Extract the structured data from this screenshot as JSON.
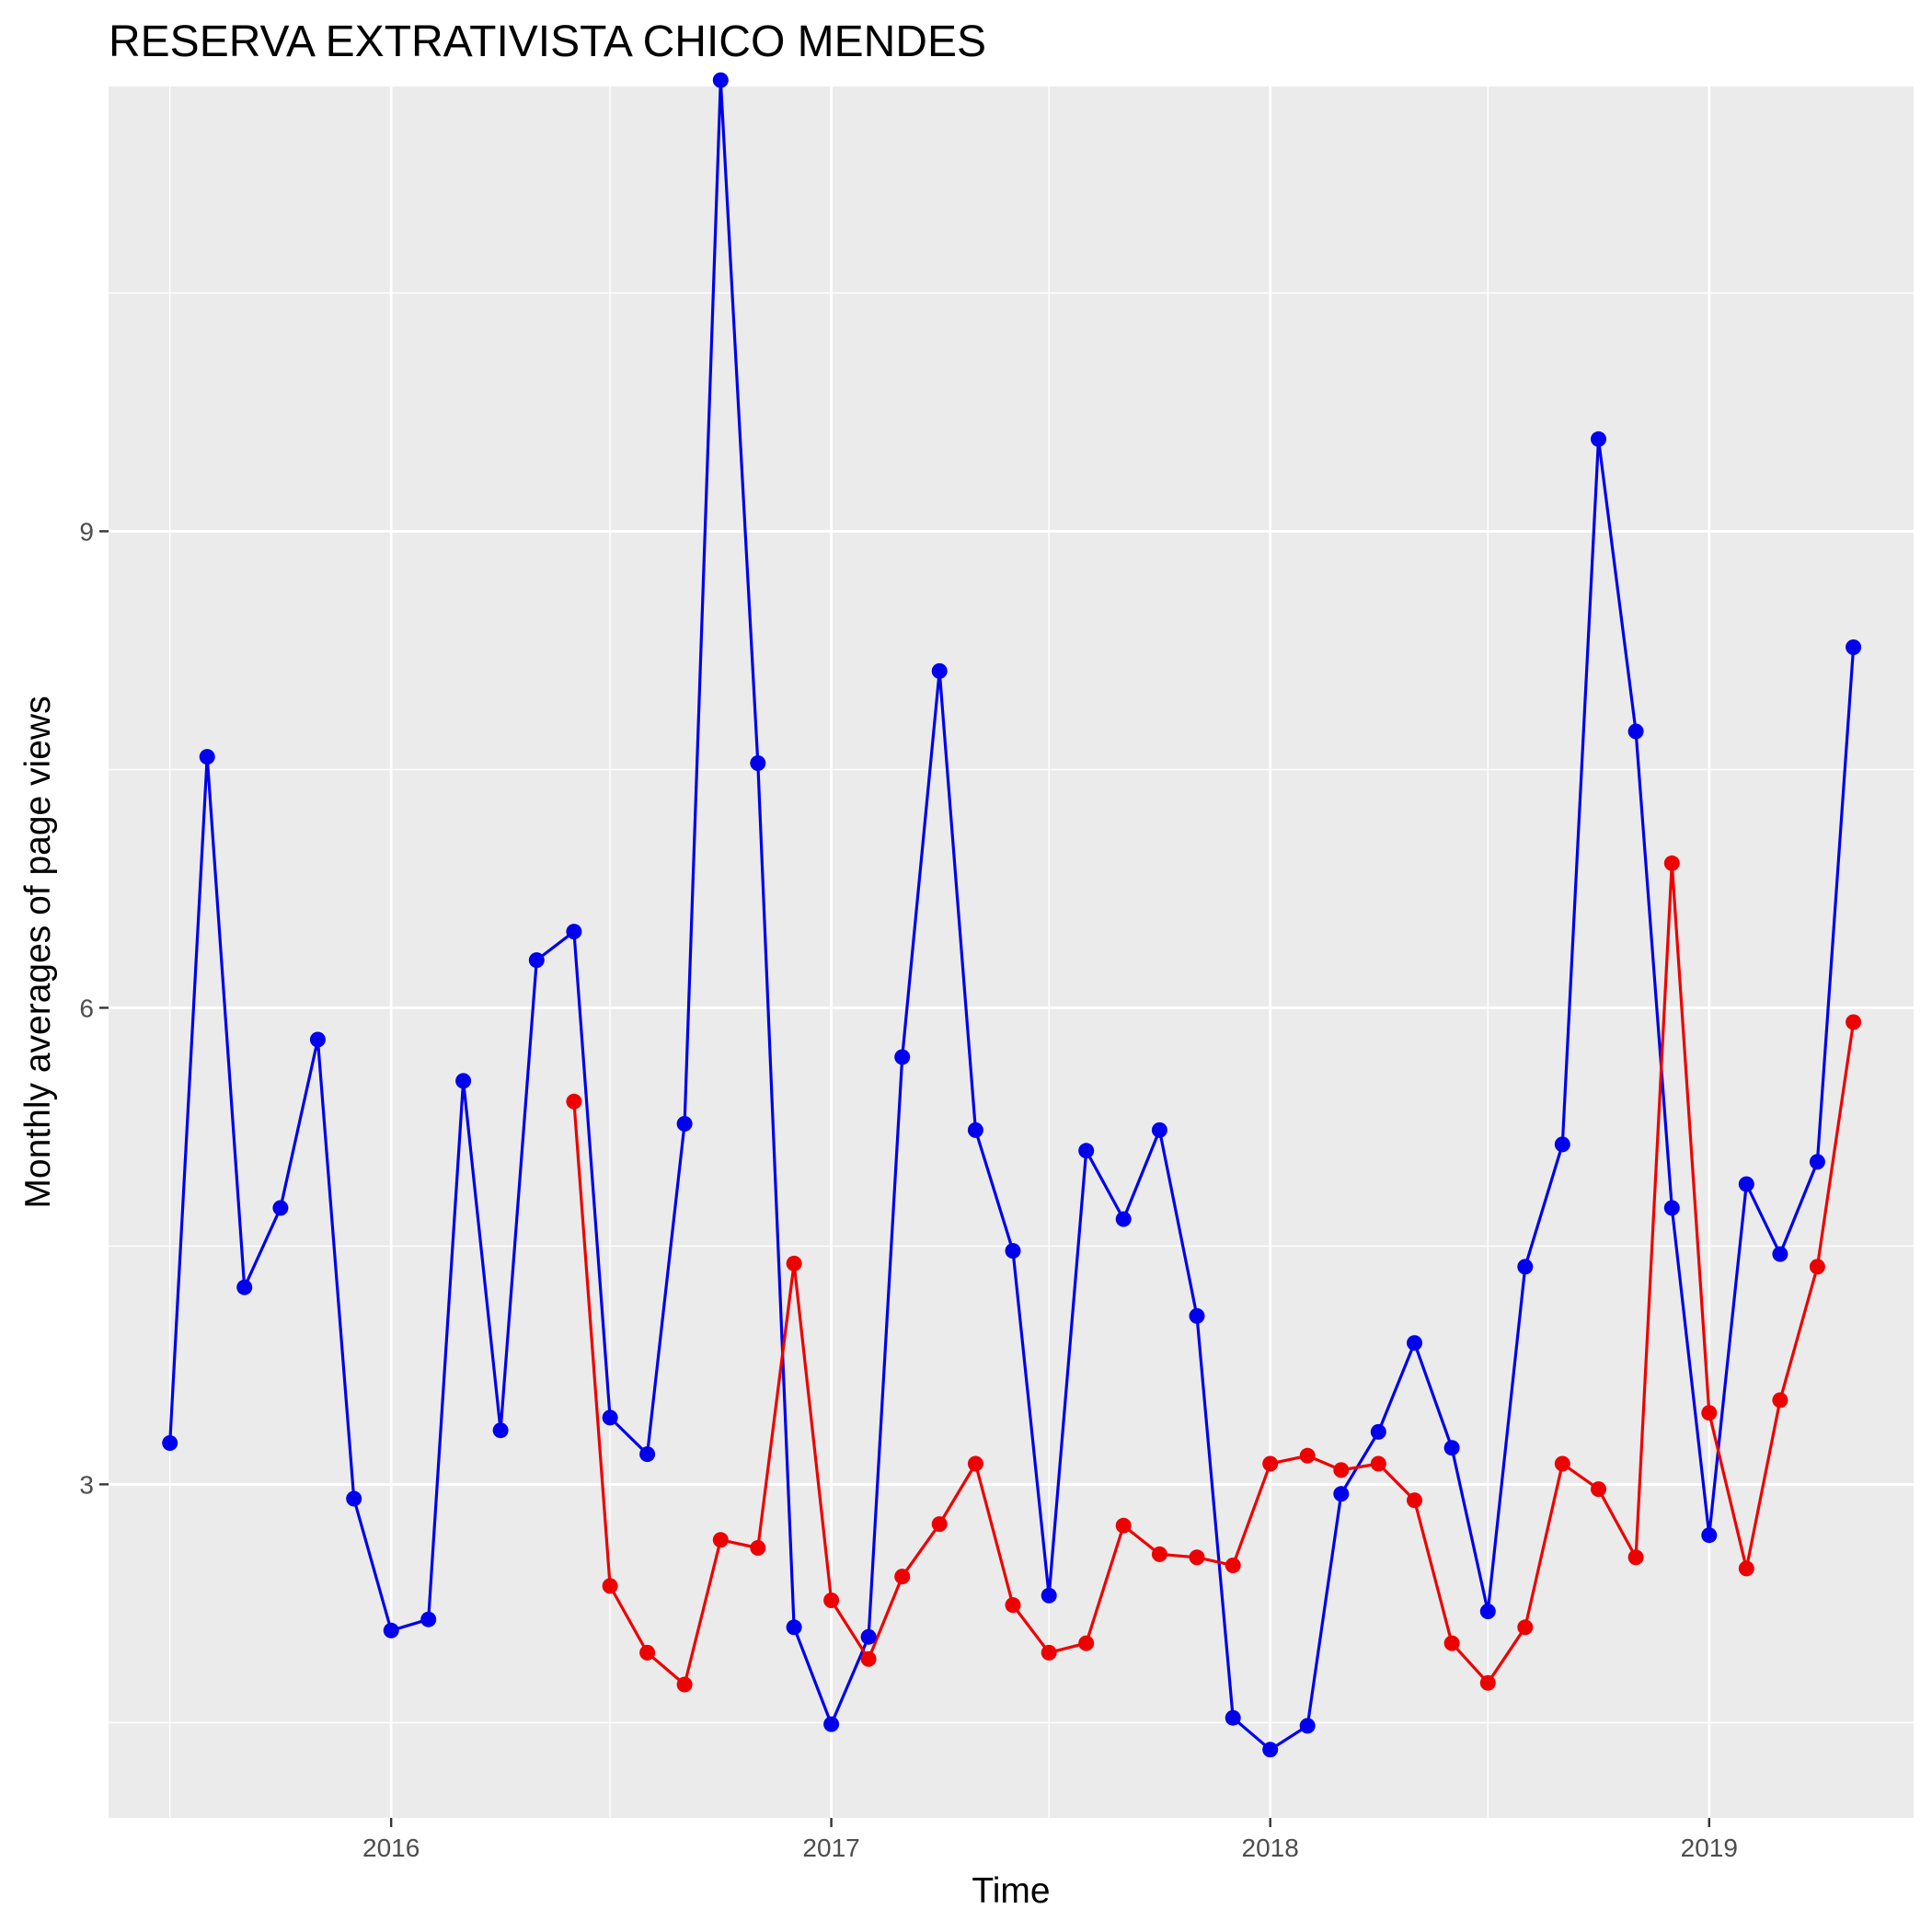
{
  "chart_data": {
    "type": "line",
    "title": "RESERVA EXTRATIVISTA CHICO MENDES",
    "xlabel": "Time",
    "ylabel": "Monthly averages of page views",
    "x_ticks": [
      "2016",
      "2017",
      "2018",
      "2019"
    ],
    "y_ticks": [
      "3",
      "6",
      "9"
    ],
    "xlim": [
      "2015-05-11",
      "2019-06-20"
    ],
    "ylim": [
      0.9,
      11.8
    ],
    "grid": true,
    "background": "#ebebeb",
    "series": [
      {
        "color": "#0000ee",
        "x": [
          "2015-07-01",
          "2015-08-01",
          "2015-09-01",
          "2015-10-01",
          "2015-11-01",
          "2015-12-01",
          "2016-01-01",
          "2016-02-01",
          "2016-03-01",
          "2016-04-01",
          "2016-05-01",
          "2016-06-01",
          "2016-07-01",
          "2016-08-01",
          "2016-09-01",
          "2016-10-01",
          "2016-11-01",
          "2016-12-01",
          "2017-01-01",
          "2017-02-01",
          "2017-03-01",
          "2017-04-01",
          "2017-05-01",
          "2017-06-01",
          "2017-07-01",
          "2017-08-01",
          "2017-09-01",
          "2017-10-01",
          "2017-11-01",
          "2017-12-01",
          "2018-01-01",
          "2018-02-01",
          "2018-03-01",
          "2018-04-01",
          "2018-05-01",
          "2018-06-01",
          "2018-07-01",
          "2018-08-01",
          "2018-09-01",
          "2018-10-01",
          "2018-11-01",
          "2018-12-01",
          "2019-01-01",
          "2019-02-01",
          "2019-03-01",
          "2019-04-01",
          "2019-05-01"
        ],
        "values": [
          3.26,
          7.58,
          4.24,
          4.74,
          5.8,
          2.91,
          2.08,
          2.15,
          5.54,
          3.34,
          6.3,
          6.48,
          3.42,
          3.19,
          5.27,
          11.84,
          7.54,
          2.1,
          1.49,
          2.04,
          5.69,
          8.12,
          5.23,
          4.47,
          2.3,
          5.1,
          4.67,
          5.23,
          4.06,
          1.53,
          1.33,
          1.48,
          2.94,
          3.33,
          3.89,
          3.23,
          2.2,
          4.37,
          5.14,
          9.58,
          7.74,
          4.74,
          2.68,
          4.89,
          4.45,
          5.03,
          8.27
        ]
      },
      {
        "color": "#ee0000",
        "x": [
          "2016-06-01",
          "2016-07-01",
          "2016-08-01",
          "2016-09-01",
          "2016-10-01",
          "2016-11-01",
          "2016-12-01",
          "2017-01-01",
          "2017-02-01",
          "2017-03-01",
          "2017-04-01",
          "2017-05-01",
          "2017-06-01",
          "2017-07-01",
          "2017-08-01",
          "2017-09-01",
          "2017-10-01",
          "2017-11-01",
          "2017-12-01",
          "2018-01-01",
          "2018-02-01",
          "2018-03-01",
          "2018-04-01",
          "2018-05-01",
          "2018-06-01",
          "2018-07-01",
          "2018-08-01",
          "2018-09-01",
          "2018-10-01",
          "2018-11-01",
          "2018-12-01",
          "2019-01-01",
          "2019-02-01",
          "2019-03-01",
          "2019-04-01",
          "2019-05-01"
        ],
        "values": [
          5.41,
          2.36,
          1.94,
          1.74,
          2.65,
          2.6,
          4.39,
          2.27,
          1.9,
          2.42,
          2.75,
          3.13,
          2.24,
          1.94,
          2.0,
          2.74,
          2.56,
          2.54,
          2.49,
          3.13,
          3.18,
          3.09,
          3.13,
          2.9,
          2.0,
          1.75,
          2.1,
          3.13,
          2.97,
          2.54,
          6.91,
          3.45,
          2.47,
          3.53,
          4.37,
          5.91
        ]
      }
    ]
  }
}
